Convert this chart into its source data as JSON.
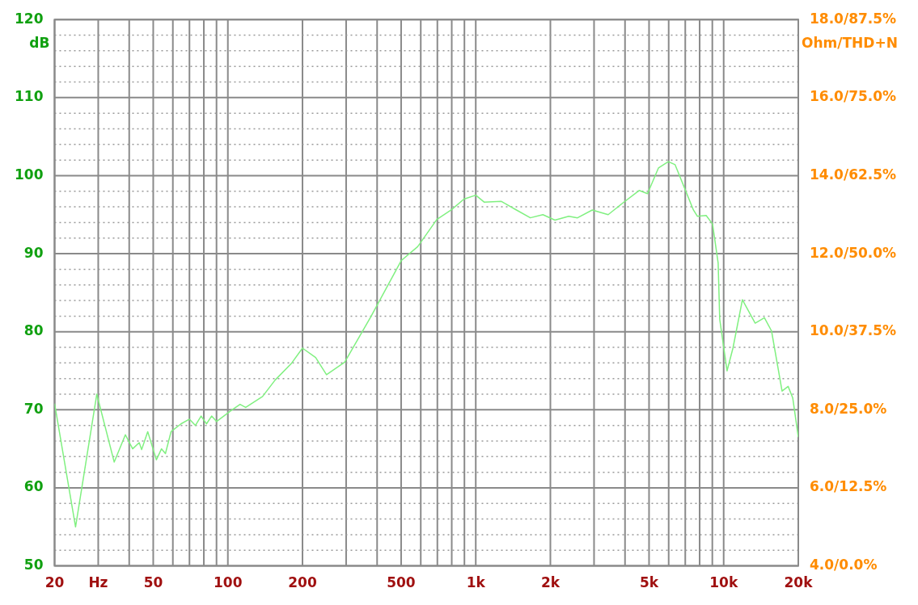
{
  "chart_data": {
    "type": "line",
    "ylabel": "dB",
    "y2label": "Ohm/THD+N",
    "log": "x",
    "grid": true,
    "marker": "none",
    "line_style": "solid",
    "x": [
      20,
      24.3,
      29.6,
      34.8,
      38.6,
      41.3,
      43.9,
      44.9,
      47.5,
      51.5,
      54,
      56,
      59,
      64.7,
      70,
      74,
      78,
      82,
      86,
      90,
      104,
      112,
      118,
      138,
      155,
      180,
      200,
      226,
      250,
      275,
      296,
      377,
      500,
      583,
      697,
      796,
      896,
      1000,
      1083,
      1269,
      1440,
      1660,
      1865,
      2086,
      2372,
      2573,
      2950,
      3420,
      3920,
      4560,
      4930,
      5460,
      5980,
      6370,
      7550,
      7830,
      8500,
      9020,
      9500,
      9640,
      10320,
      10900,
      11900,
      13400,
      14600,
      15600,
      17200,
      18200,
      19000,
      20000
    ],
    "series": [
      {
        "color": "#80f080",
        "values": [
          70.8,
          55,
          72,
          63.3,
          66.8,
          65,
          65.8,
          64.9,
          67.2,
          63.6,
          65,
          64.4,
          67.2,
          68.2,
          68.8,
          68,
          69.2,
          68.2,
          69.2,
          68.5,
          70,
          70.7,
          70.3,
          71.7,
          73.8,
          75.9,
          77.9,
          76.7,
          74.5,
          75.4,
          76.1,
          81.9,
          89.1,
          90.9,
          94.4,
          95.6,
          97,
          97.5,
          96.6,
          96.7,
          95.7,
          94.6,
          95,
          94.3,
          94.8,
          94.6,
          95.6,
          95,
          96.5,
          98.1,
          97.7,
          101,
          101.8,
          101.4,
          95.6,
          94.8,
          94.9,
          93.8,
          88.8,
          81.6,
          75,
          77.9,
          84.1,
          81.1,
          81.8,
          80.1,
          72.4,
          73,
          71.5,
          66.5
        ]
      }
    ],
    "xlim": [
      20,
      20000
    ],
    "xticks": [
      20,
      {
        "value": 30,
        "label": "Hz"
      },
      {
        "value": 40,
        "label": null
      },
      50,
      {
        "value": 60,
        "label": null
      },
      {
        "value": 70,
        "label": null
      },
      {
        "value": 80,
        "label": null
      },
      {
        "value": 90,
        "label": null
      },
      100,
      200,
      {
        "value": 300,
        "label": null
      },
      {
        "value": 400,
        "label": null
      },
      500,
      {
        "value": 600,
        "label": null
      },
      {
        "value": 700,
        "label": null
      },
      {
        "value": 800,
        "label": null
      },
      {
        "value": 900,
        "label": null
      },
      {
        "value": 1000,
        "label": "1k"
      },
      {
        "value": 2000,
        "label": "2k"
      },
      {
        "value": 3000,
        "label": null
      },
      {
        "value": 4000,
        "label": null
      },
      {
        "value": 5000,
        "label": "5k"
      },
      {
        "value": 6000,
        "label": null
      },
      {
        "value": 7000,
        "label": null
      },
      {
        "value": 8000,
        "label": null
      },
      {
        "value": 9000,
        "label": null
      },
      {
        "value": 10000,
        "label": "10k"
      },
      {
        "value": 20000,
        "label": "20k"
      }
    ],
    "ylim": [
      50,
      120
    ],
    "yticks": [
      50,
      {
        "value": 52,
        "label": null
      },
      {
        "value": 54,
        "label": null
      },
      {
        "value": 56,
        "label": null
      },
      {
        "value": 58,
        "label": null
      },
      60,
      {
        "value": 62,
        "label": null
      },
      {
        "value": 64,
        "label": null
      },
      {
        "value": 66,
        "label": null
      },
      {
        "value": 68,
        "label": null
      },
      70,
      {
        "value": 72,
        "label": null
      },
      {
        "value": 74,
        "label": null
      },
      {
        "value": 76,
        "label": null
      },
      {
        "value": 78,
        "label": null
      },
      80,
      {
        "value": 82,
        "label": null
      },
      {
        "value": 84,
        "label": null
      },
      {
        "value": 86,
        "label": null
      },
      {
        "value": 88,
        "label": null
      },
      90,
      {
        "value": 92,
        "label": null
      },
      {
        "value": 94,
        "label": null
      },
      {
        "value": 96,
        "label": null
      },
      {
        "value": 98,
        "label": null
      },
      100,
      {
        "value": 102,
        "label": null
      },
      {
        "value": 104,
        "label": null
      },
      {
        "value": 106,
        "label": null
      },
      {
        "value": 108,
        "label": null
      },
      110,
      {
        "value": 112,
        "label": null
      },
      {
        "value": 114,
        "label": null
      },
      {
        "value": 116,
        "label": null
      },
      {
        "value": 118,
        "label": null
      },
      120
    ],
    "annotations": [
      "4.0/0.0%",
      "6.0/12.5%",
      "8.0/25.0%",
      "10.0/37.5%",
      "12.0/50.0%",
      "14.0/62.5%",
      "16.0/75.0%",
      "18.0/87.5%"
    ]
  }
}
